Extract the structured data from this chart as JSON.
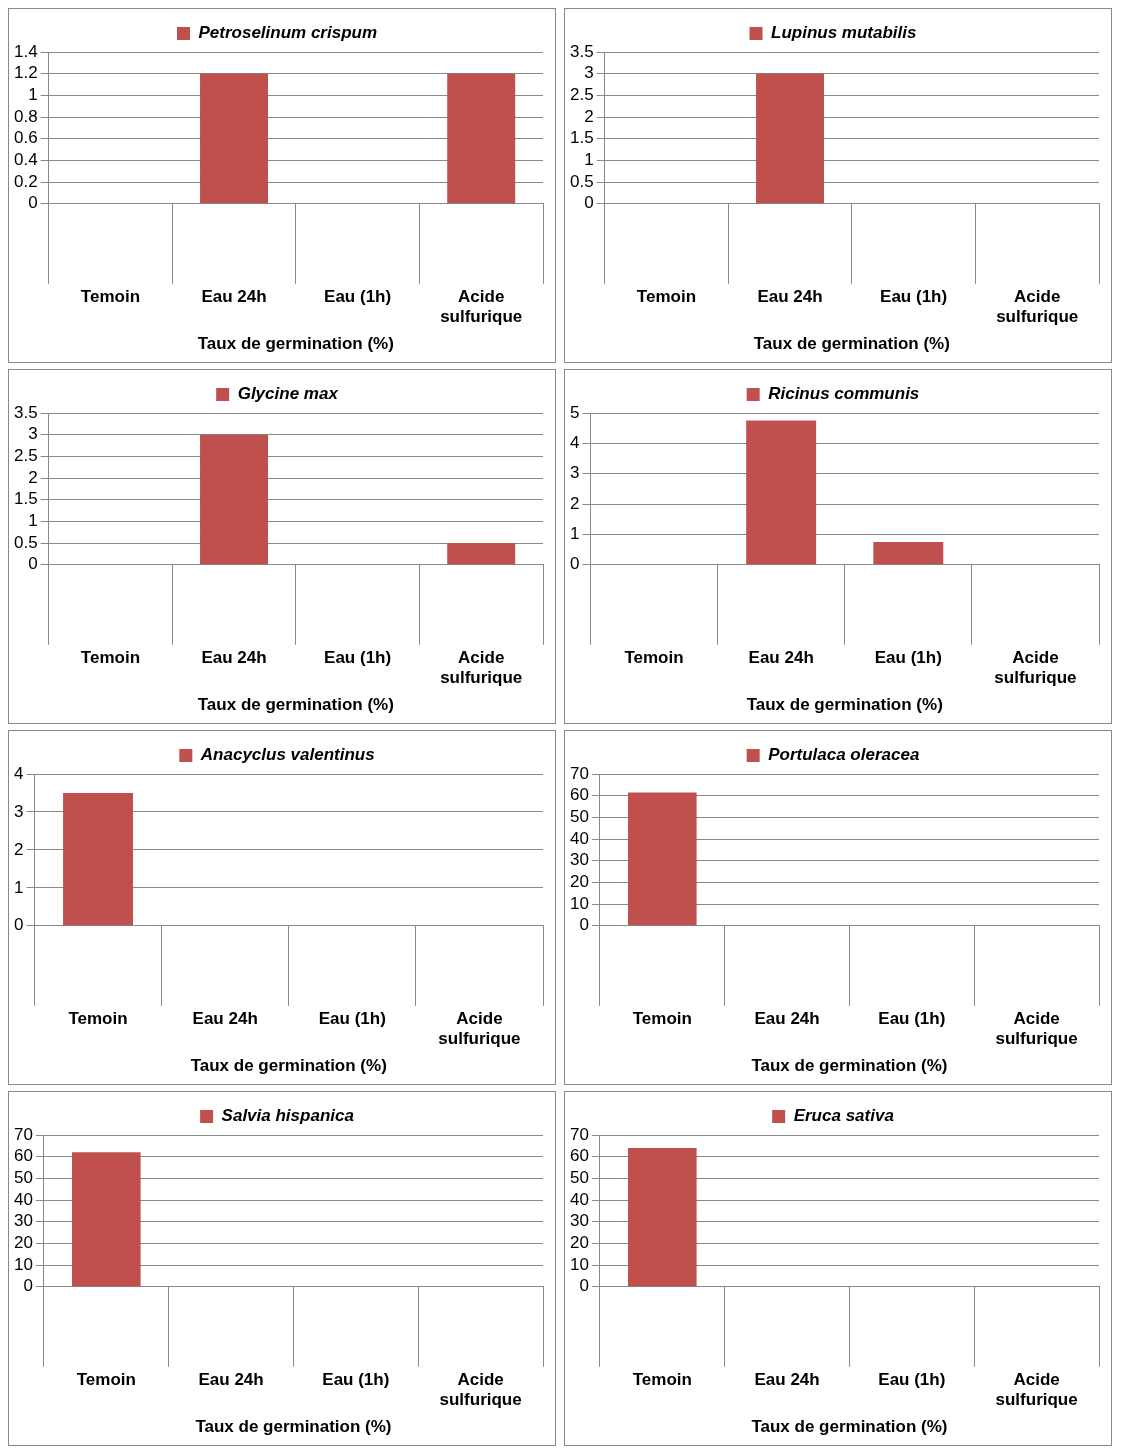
{
  "chart_data": [
    {
      "type": "bar",
      "categories": [
        "Temoin",
        "Eau 24h",
        "Eau (1h)",
        "Acide sulfurique"
      ],
      "series": [
        {
          "name": "Petroselinum crispum",
          "color": "#c0504d",
          "values": [
            0,
            1.2,
            0,
            1.2
          ]
        }
      ],
      "xlabel": "Taux de germination (%)",
      "ylim": [
        0,
        1.4
      ],
      "yticks": [
        0,
        0.2,
        0.4,
        0.6,
        0.8,
        1,
        1.2,
        1.4
      ],
      "grid": "y",
      "legend": "top"
    },
    {
      "type": "bar",
      "categories": [
        "Temoin",
        "Eau 24h",
        "Eau (1h)",
        "Acide sulfurique"
      ],
      "series": [
        {
          "name": "Lupinus mutabilis",
          "color": "#c0504d",
          "values": [
            0,
            3,
            0,
            0
          ]
        }
      ],
      "xlabel": "Taux de germination (%)",
      "ylim": [
        0,
        3.5
      ],
      "yticks": [
        0,
        0.5,
        1,
        1.5,
        2,
        2.5,
        3,
        3.5
      ],
      "grid": "y",
      "legend": "top"
    },
    {
      "type": "bar",
      "categories": [
        "Temoin",
        "Eau 24h",
        "Eau (1h)",
        "Acide sulfurique"
      ],
      "series": [
        {
          "name": "Glycine max",
          "color": "#c0504d",
          "values": [
            0,
            3,
            0,
            0.5
          ]
        }
      ],
      "xlabel": "Taux de germination (%)",
      "ylim": [
        0,
        3.5
      ],
      "yticks": [
        0,
        0.5,
        1,
        1.5,
        2,
        2.5,
        3,
        3.5
      ],
      "grid": "y",
      "legend": "top"
    },
    {
      "type": "bar",
      "categories": [
        "Temoin",
        "Eau 24h",
        "Eau (1h)",
        "Acide sulfurique"
      ],
      "series": [
        {
          "name": "Ricinus communis",
          "color": "#c0504d",
          "values": [
            0,
            4.75,
            0.75,
            0
          ]
        }
      ],
      "xlabel": "Taux de germination (%)",
      "ylim": [
        0,
        5
      ],
      "yticks": [
        0,
        1,
        2,
        3,
        4,
        5
      ],
      "grid": "y",
      "legend": "top"
    },
    {
      "type": "bar",
      "categories": [
        "Temoin",
        "Eau 24h",
        "Eau (1h)",
        "Acide sulfurique"
      ],
      "series": [
        {
          "name": "Anacyclus valentinus",
          "color": "#c0504d",
          "values": [
            3.5,
            0,
            0,
            0
          ]
        }
      ],
      "xlabel": "Taux de germination (%)",
      "ylim": [
        0,
        4
      ],
      "yticks": [
        0,
        1,
        2,
        3,
        4
      ],
      "grid": "y",
      "legend": "top"
    },
    {
      "type": "bar",
      "categories": [
        "Temoin",
        "Eau 24h",
        "Eau (1h)",
        "Acide sulfurique"
      ],
      "series": [
        {
          "name": "Portulaca oleracea",
          "color": "#c0504d",
          "values": [
            61.5,
            0,
            0,
            0
          ]
        }
      ],
      "xlabel": "Taux de germination (%)",
      "ylim": [
        0,
        70
      ],
      "yticks": [
        0,
        10,
        20,
        30,
        40,
        50,
        60,
        70
      ],
      "grid": "y",
      "legend": "top"
    },
    {
      "type": "bar",
      "categories": [
        "Temoin",
        "Eau 24h",
        "Eau (1h)",
        "Acide sulfurique"
      ],
      "series": [
        {
          "name": "Salvia hispanica",
          "color": "#c0504d",
          "values": [
            62,
            0,
            0,
            0
          ]
        }
      ],
      "xlabel": "Taux de germination (%)",
      "ylim": [
        0,
        70
      ],
      "yticks": [
        0,
        10,
        20,
        30,
        40,
        50,
        60,
        70
      ],
      "grid": "y",
      "legend": "top"
    },
    {
      "type": "bar",
      "categories": [
        "Temoin",
        "Eau 24h",
        "Eau (1h)",
        "Acide sulfurique"
      ],
      "series": [
        {
          "name": "Eruca sativa",
          "color": "#c0504d",
          "values": [
            64,
            0,
            0,
            0
          ]
        }
      ],
      "xlabel": "Taux de germination (%)",
      "ylim": [
        0,
        70
      ],
      "yticks": [
        0,
        10,
        20,
        30,
        40,
        50,
        60,
        70
      ],
      "grid": "y",
      "legend": "top"
    }
  ]
}
